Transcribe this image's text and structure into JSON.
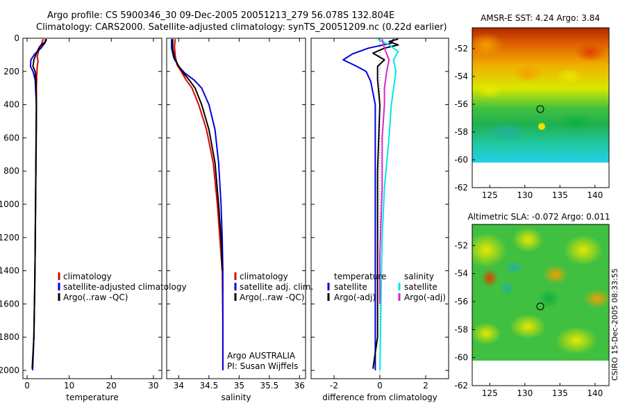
{
  "title_line1": "Argo profile: CS 5900346_30 09-Dec-2005 20051213_279 56.078S 132.804E",
  "title_line2": "Climatology: CARS2000. Satellite-adjusted climatology: synTS_20051209.nc (0.22d earlier)",
  "footer_vertical": "CSIRO 15-Dec-2005 08:33:55",
  "colors": {
    "red": "#dd0000",
    "blue": "#0000dd",
    "black": "#000000",
    "cyan": "#00e6e6",
    "magenta": "#dd22cc"
  },
  "chart_data": [
    {
      "type": "line",
      "id": "temperature",
      "xlabel": "temperature",
      "xlim": [
        -1,
        32
      ],
      "ylim": [
        2050,
        0
      ],
      "xticks": [
        0,
        10,
        20,
        30
      ],
      "yticks": [
        0,
        200,
        400,
        600,
        800,
        1000,
        1200,
        1400,
        1600,
        1800,
        2000
      ],
      "legend": [
        "climatology",
        "satellite-adjusted climatology",
        "Argo(..raw -QC)"
      ],
      "series": [
        {
          "name": "climatology",
          "color": "red",
          "points": [
            [
              3.8,
              5
            ],
            [
              3.5,
              30
            ],
            [
              2.8,
              70
            ],
            [
              2.4,
              110
            ],
            [
              2.6,
              140
            ],
            [
              2.4,
              170
            ],
            [
              2.3,
              220
            ],
            [
              2.2,
              300
            ],
            [
              2.2,
              500
            ],
            [
              2.1,
              800
            ],
            [
              2.0,
              1000
            ],
            [
              1.9,
              1300
            ],
            [
              1.8,
              1500
            ],
            [
              1.6,
              1800
            ],
            [
              1.3,
              2000
            ]
          ]
        },
        {
          "name": "satellite-adjusted climatology",
          "color": "blue",
          "points": [
            [
              4.4,
              5
            ],
            [
              4.2,
              30
            ],
            [
              3.3,
              60
            ],
            [
              1.8,
              95
            ],
            [
              0.9,
              130
            ],
            [
              0.8,
              170
            ],
            [
              1.4,
              200
            ],
            [
              1.9,
              250
            ],
            [
              2.2,
              400
            ],
            [
              2.1,
              700
            ],
            [
              2.0,
              1000
            ],
            [
              1.9,
              1300
            ],
            [
              1.8,
              1500
            ],
            [
              1.6,
              1800
            ],
            [
              1.3,
              2000
            ]
          ]
        },
        {
          "name": "Argo(..raw -QC)",
          "color": "black",
          "points": [
            [
              4.6,
              5
            ],
            [
              4.4,
              20
            ],
            [
              3.0,
              50
            ],
            [
              2.2,
              90
            ],
            [
              1.6,
              130
            ],
            [
              1.4,
              170
            ],
            [
              1.9,
              200
            ],
            [
              2.1,
              260
            ],
            [
              2.2,
              400
            ],
            [
              2.1,
              700
            ],
            [
              2.0,
              1000
            ],
            [
              1.9,
              1300
            ],
            [
              1.8,
              1500
            ],
            [
              1.6,
              1800
            ],
            [
              1.2,
              1990
            ]
          ]
        }
      ]
    },
    {
      "type": "line",
      "id": "salinity",
      "xlabel": "salinity",
      "xlim": [
        33.8,
        36.1
      ],
      "ylim": [
        2050,
        0
      ],
      "xticks": [
        34,
        34.5,
        35,
        35.5,
        36
      ],
      "legend": [
        "climatology",
        "satellite adj. clim.",
        "Argo(..raw -QC)"
      ],
      "annotation": [
        "Argo AUSTRALIA",
        "PI: Susan Wijffels"
      ],
      "series": [
        {
          "name": "climatology",
          "color": "red",
          "points": [
            [
              33.94,
              5
            ],
            [
              33.93,
              50
            ],
            [
              33.94,
              100
            ],
            [
              33.97,
              160
            ],
            [
              34.04,
              200
            ],
            [
              34.12,
              250
            ],
            [
              34.22,
              300
            ],
            [
              34.33,
              400
            ],
            [
              34.46,
              550
            ],
            [
              34.57,
              750
            ],
            [
              34.64,
              1000
            ],
            [
              34.68,
              1200
            ],
            [
              34.72,
              1400
            ],
            [
              34.73,
              1700
            ],
            [
              34.73,
              2000
            ]
          ]
        },
        {
          "name": "satellite adj. clim.",
          "color": "blue",
          "points": [
            [
              33.88,
              5
            ],
            [
              33.88,
              60
            ],
            [
              33.92,
              120
            ],
            [
              34.0,
              170
            ],
            [
              34.1,
              210
            ],
            [
              34.25,
              250
            ],
            [
              34.38,
              300
            ],
            [
              34.5,
              400
            ],
            [
              34.6,
              550
            ],
            [
              34.66,
              750
            ],
            [
              34.7,
              1000
            ],
            [
              34.72,
              1200
            ],
            [
              34.73,
              1400
            ],
            [
              34.73,
              1700
            ],
            [
              34.73,
              2000
            ]
          ]
        },
        {
          "name": "Argo(..raw -QC)",
          "color": "black",
          "points": [
            [
              33.9,
              5
            ],
            [
              33.9,
              60
            ],
            [
              33.93,
              120
            ],
            [
              34.0,
              170
            ],
            [
              34.08,
              210
            ],
            [
              34.17,
              250
            ],
            [
              34.27,
              300
            ],
            [
              34.38,
              400
            ],
            [
              34.5,
              550
            ],
            [
              34.6,
              750
            ],
            [
              34.66,
              1000
            ],
            [
              34.7,
              1200
            ],
            [
              34.72,
              1400
            ]
          ]
        }
      ]
    },
    {
      "type": "line",
      "id": "difference",
      "xlabel": "difference from climatology",
      "xlim": [
        -3,
        3
      ],
      "ylim": [
        2050,
        0
      ],
      "xticks": [
        -2,
        0,
        2
      ],
      "legend_left_title": "temperature",
      "legend_right_title": "salinity",
      "legend_left": [
        "satellite",
        "Argo(-adj)"
      ],
      "legend_right": [
        "satellite",
        "Argo(-adj)"
      ],
      "series": [
        {
          "name": "temperature satellite",
          "color": "blue",
          "points": [
            [
              0.6,
              5
            ],
            [
              0.5,
              30
            ],
            [
              -0.5,
              60
            ],
            [
              -1.2,
              95
            ],
            [
              -1.6,
              130
            ],
            [
              -1.0,
              170
            ],
            [
              -0.6,
              200
            ],
            [
              -0.4,
              260
            ],
            [
              -0.2,
              400
            ],
            [
              -0.2,
              800
            ],
            [
              -0.2,
              1200
            ],
            [
              -0.2,
              1600
            ],
            [
              -0.2,
              2000
            ]
          ]
        },
        {
          "name": "temperature Argo(-adj)",
          "color": "black",
          "points": [
            [
              0.8,
              5
            ],
            [
              0.4,
              20
            ],
            [
              0.8,
              40
            ],
            [
              0.2,
              60
            ],
            [
              -0.3,
              90
            ],
            [
              0.2,
              130
            ],
            [
              -0.1,
              170
            ],
            [
              -0.1,
              250
            ],
            [
              0.0,
              400
            ],
            [
              -0.1,
              800
            ],
            [
              -0.1,
              1200
            ],
            [
              -0.1,
              1500
            ],
            [
              -0.1,
              1800
            ],
            [
              -0.3,
              1990
            ]
          ]
        },
        {
          "name": "salinity satellite",
          "color": "cyan",
          "points": [
            [
              -0.1,
              5
            ],
            [
              0.4,
              40
            ],
            [
              0.8,
              80
            ],
            [
              0.6,
              130
            ],
            [
              0.7,
              200
            ],
            [
              0.6,
              300
            ],
            [
              0.5,
              400
            ],
            [
              0.4,
              600
            ],
            [
              0.2,
              900
            ],
            [
              0.1,
              1200
            ],
            [
              0.05,
              1600
            ],
            [
              0.0,
              2000
            ]
          ]
        },
        {
          "name": "salinity Argo(-adj)",
          "color": "magenta",
          "points": [
            [
              0.1,
              5
            ],
            [
              0.2,
              60
            ],
            [
              0.4,
              130
            ],
            [
              0.3,
              200
            ],
            [
              0.2,
              300
            ],
            [
              0.2,
              400
            ],
            [
              0.1,
              600
            ],
            [
              0.1,
              900
            ],
            [
              0.0,
              1300
            ],
            [
              0.0,
              1600
            ]
          ]
        }
      ]
    },
    {
      "type": "heatmap",
      "id": "sst-map",
      "title": "AMSR-E SST: 4.24 Argo: 3.84",
      "xlim": [
        122.5,
        142
      ],
      "ylim": [
        -62,
        -50.5
      ],
      "xticks": [
        125,
        130,
        135,
        140
      ],
      "yticks": [
        -52,
        -54,
        -56,
        -58,
        -60,
        -62
      ],
      "marker": [
        132.8,
        -56.1
      ],
      "data_extent_lat": [
        -60,
        -50.5
      ]
    },
    {
      "type": "heatmap",
      "id": "sla-map",
      "title": "Altimetric SLA: -0.072 Argo: 0.011",
      "xlim": [
        122.5,
        142
      ],
      "ylim": [
        -62,
        -50.5
      ],
      "xticks": [
        125,
        130,
        135,
        140
      ],
      "yticks": [
        -52,
        -54,
        -56,
        -58,
        -60,
        -62
      ],
      "marker": [
        132.8,
        -56.1
      ],
      "data_extent_lat": [
        -60,
        -50.5
      ]
    }
  ]
}
